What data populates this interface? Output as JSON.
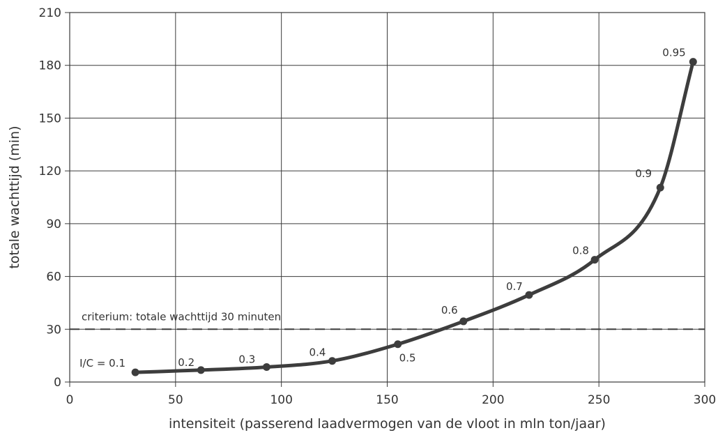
{
  "chart_data": {
    "type": "line",
    "xlabel": "intensiteit (passerend laadvermogen van de vloot in mln ton/jaar)",
    "ylabel": "totale wachttijd (min)",
    "xlim": [
      0,
      300
    ],
    "ylim": [
      0,
      210
    ],
    "xticks": [
      0,
      50,
      100,
      150,
      200,
      250,
      300
    ],
    "yticks": [
      0,
      30,
      60,
      90,
      120,
      150,
      180,
      210
    ],
    "grid": true,
    "series": [
      {
        "points": [
          {
            "x": 31,
            "y": 5.5,
            "label": "I/C = 0.1"
          },
          {
            "x": 62,
            "y": 6.8,
            "label": "0.2"
          },
          {
            "x": 93,
            "y": 8.5,
            "label": "0.3"
          },
          {
            "x": 124,
            "y": 12,
            "label": "0.4"
          },
          {
            "x": 155,
            "y": 21.5,
            "label": "0.5"
          },
          {
            "x": 186,
            "y": 34.5,
            "label": "0.6"
          },
          {
            "x": 217,
            "y": 49.5,
            "label": "0.7"
          },
          {
            "x": 248,
            "y": 69.5,
            "label": "0.8"
          },
          {
            "x": 279,
            "y": 110.5,
            "label": "0.9"
          },
          {
            "x": 294.5,
            "y": 182,
            "label": "0.95"
          }
        ]
      }
    ],
    "reference_line": {
      "y": 30,
      "label": "criterium: totale wachttijd 30 minuten",
      "style": "dashed"
    }
  }
}
